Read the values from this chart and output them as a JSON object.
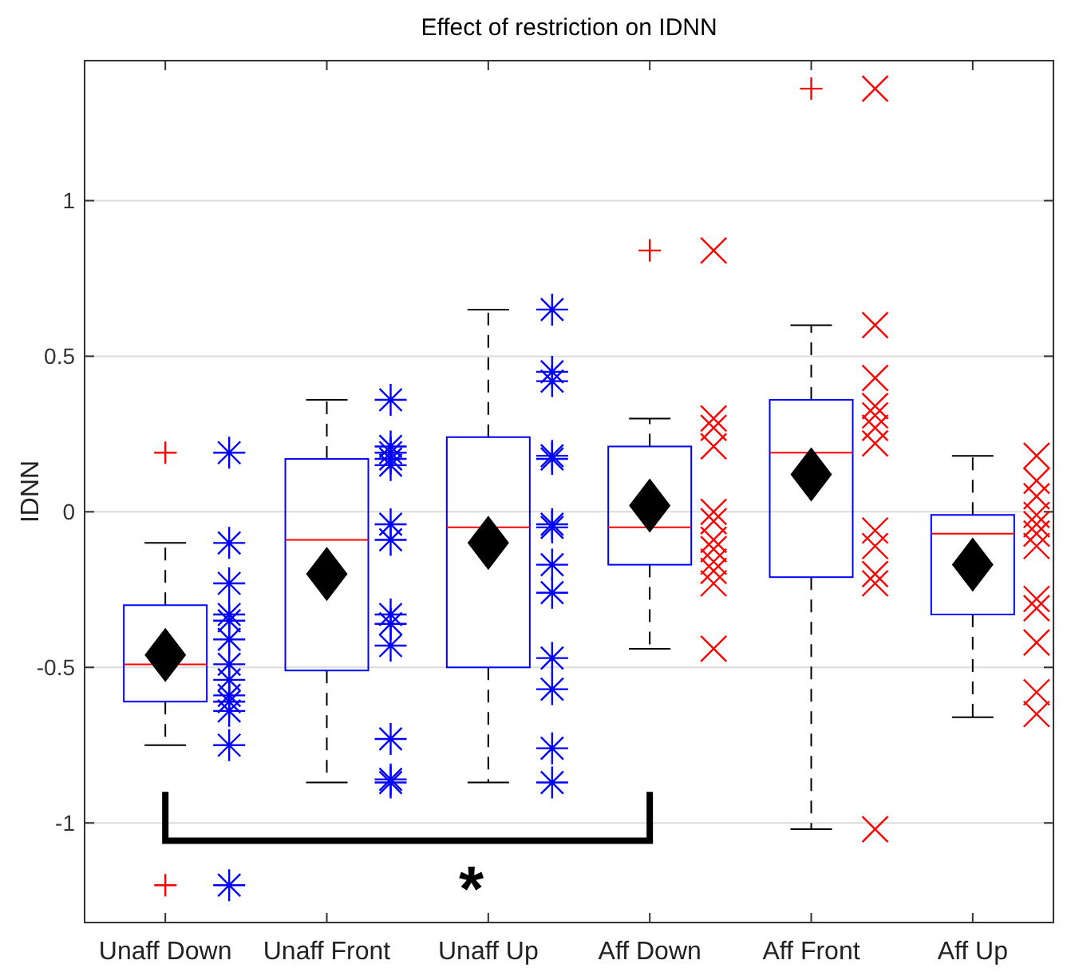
{
  "chart_data": {
    "type": "box",
    "title": "Effect of restriction on IDNN",
    "ylabel": "IDNN",
    "categories": [
      "Unaff Down",
      "Unaff Front",
      "Unaff Up",
      "Aff Down",
      "Aff Front",
      "Aff Up"
    ],
    "boxes": [
      {
        "low": -0.75,
        "q1": -0.61,
        "median": -0.49,
        "q3": -0.3,
        "high": -0.1,
        "mean": -0.46,
        "outliers": [
          0.19,
          -1.2
        ]
      },
      {
        "low": -0.87,
        "q1": -0.51,
        "median": -0.09,
        "q3": 0.17,
        "high": 0.36,
        "mean": -0.2
      },
      {
        "low": -0.87,
        "q1": -0.5,
        "median": -0.05,
        "q3": 0.24,
        "high": 0.65,
        "mean": -0.1
      },
      {
        "low": -0.44,
        "q1": -0.17,
        "median": -0.05,
        "q3": 0.21,
        "high": 0.3,
        "mean": 0.02,
        "outliers": [
          0.84
        ]
      },
      {
        "low": -1.02,
        "q1": -0.21,
        "median": 0.19,
        "q3": 0.36,
        "high": 0.6,
        "mean": 0.12,
        "outliers": [
          1.36
        ]
      },
      {
        "low": -0.66,
        "q1": -0.33,
        "median": -0.07,
        "q3": -0.01,
        "high": 0.18,
        "mean": -0.17
      }
    ],
    "series": [
      {
        "type": "scatter",
        "color": "#0000ff",
        "x": [
          "Unaff Down",
          "Unaff Down",
          "Unaff Down",
          "Unaff Down",
          "Unaff Down",
          "Unaff Down",
          "Unaff Down",
          "Unaff Down",
          "Unaff Down",
          "Unaff Down",
          "Unaff Down",
          "Unaff Down",
          "Unaff Down",
          "Unaff Front",
          "Unaff Front",
          "Unaff Front",
          "Unaff Front",
          "Unaff Front",
          "Unaff Front",
          "Unaff Front",
          "Unaff Front",
          "Unaff Front",
          "Unaff Front",
          "Unaff Front",
          "Unaff Front",
          "Unaff Front",
          "Unaff Up",
          "Unaff Up",
          "Unaff Up",
          "Unaff Up",
          "Unaff Up",
          "Unaff Up",
          "Unaff Up",
          "Unaff Up",
          "Unaff Up",
          "Unaff Up",
          "Unaff Up",
          "Unaff Up",
          "Unaff Up"
        ],
        "values": [
          0.19,
          -0.1,
          -0.23,
          -0.33,
          -0.35,
          -0.41,
          -0.49,
          -0.54,
          -0.59,
          -0.61,
          -0.64,
          -0.75,
          -1.2,
          0.36,
          0.21,
          0.19,
          0.17,
          0.15,
          -0.04,
          -0.09,
          -0.33,
          -0.36,
          -0.43,
          -0.73,
          -0.86,
          -0.87,
          0.65,
          0.45,
          0.42,
          0.18,
          0.17,
          -0.04,
          -0.05,
          -0.17,
          -0.26,
          -0.47,
          -0.57,
          -0.76,
          -0.87
        ]
      },
      {
        "type": "scatter",
        "color": "#ff0000",
        "marker": "cross",
        "x": [
          "Aff Down",
          "Aff Down",
          "Aff Down",
          "Aff Down",
          "Aff Down",
          "Aff Down",
          "Aff Down",
          "Aff Down",
          "Aff Down",
          "Aff Down",
          "Aff Down",
          "Aff Down",
          "Aff Front",
          "Aff Front",
          "Aff Front",
          "Aff Front",
          "Aff Front",
          "Aff Front",
          "Aff Front",
          "Aff Front",
          "Aff Front",
          "Aff Front",
          "Aff Front",
          "Aff Front",
          "Aff Up",
          "Aff Up",
          "Aff Up",
          "Aff Up",
          "Aff Up",
          "Aff Up",
          "Aff Up",
          "Aff Up",
          "Aff Up",
          "Aff Up",
          "Aff Up",
          "Aff Up"
        ],
        "values": [
          0.84,
          0.3,
          0.27,
          0.21,
          0.0,
          -0.03,
          -0.09,
          -0.12,
          -0.16,
          -0.19,
          -0.23,
          -0.44,
          1.36,
          0.6,
          0.43,
          0.34,
          0.31,
          0.27,
          0.22,
          -0.06,
          -0.11,
          -0.2,
          -0.23,
          -1.02,
          0.18,
          0.1,
          0.05,
          -0.01,
          -0.04,
          -0.07,
          -0.11,
          -0.28,
          -0.31,
          -0.42,
          -0.58,
          -0.65
        ]
      }
    ],
    "ylim": [
      -1.32,
      1.45
    ],
    "yticks": [
      -1,
      -0.5,
      0,
      0.5,
      1
    ],
    "grid": "y",
    "annotations": [
      "*"
    ]
  }
}
